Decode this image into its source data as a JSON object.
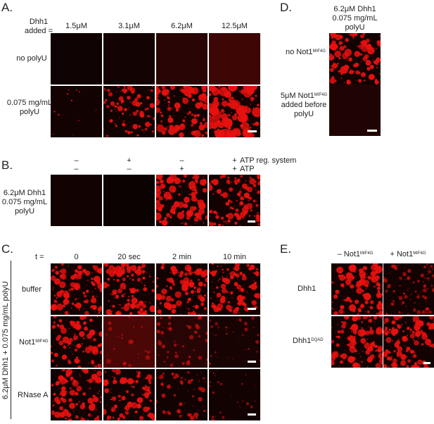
{
  "panels": {
    "A": {
      "letter": "A.",
      "header_line1": "Dhh1",
      "header_line2": "added =",
      "columns": [
        "1.5μM",
        "3.1μM",
        "6.2μM",
        "12.5μM"
      ],
      "row1": "no polyU",
      "row2_line1": "0.075 mg/mL",
      "row2_line2": "polyU"
    },
    "B": {
      "letter": "B.",
      "atp_reg_signs": [
        "–",
        "+",
        "–",
        "+"
      ],
      "atp_signs": [
        "–",
        "–",
        "+",
        "+"
      ],
      "atp_reg_label": "ATP reg. system",
      "atp_label": "ATP",
      "row_line1": "6.2μM Dhh1",
      "row_line2": "0.075 mg/mL",
      "row_line3": "polyU"
    },
    "C": {
      "letter": "C.",
      "t_label": "t =",
      "columns": [
        "0",
        "20 sec",
        "2 min",
        "10 min"
      ],
      "rows": [
        "buffer",
        "Not1",
        "RNase A"
      ],
      "not1_sup": "MIF4G",
      "vertical_label": "6.2μM Dhh1 + 0.075 mg/mL polyU"
    },
    "D": {
      "letter": "D.",
      "header_line1": "6.2μM Dhh1",
      "header_line2": "0.075 mg/mL",
      "header_line3": "polyU",
      "row1_prefix": "no Not1",
      "row1_sup": "MIF4G",
      "row2_prefix": "5μM Not1",
      "row2_sup": "MIF4G",
      "row2_line2": "added before",
      "row2_line3": "polyU"
    },
    "E": {
      "letter": "E.",
      "col1_prefix": "– Not1",
      "col1_sup": "MIF4G",
      "col2_prefix": "+ Not1",
      "col2_sup": "MIF4G",
      "row1": "Dhh1",
      "row2_prefix": "Dhh1",
      "row2_sup": "DQAD"
    }
  },
  "colors": {
    "condensate": "#e8110f",
    "background": "#1a0202",
    "text": "#222222"
  }
}
